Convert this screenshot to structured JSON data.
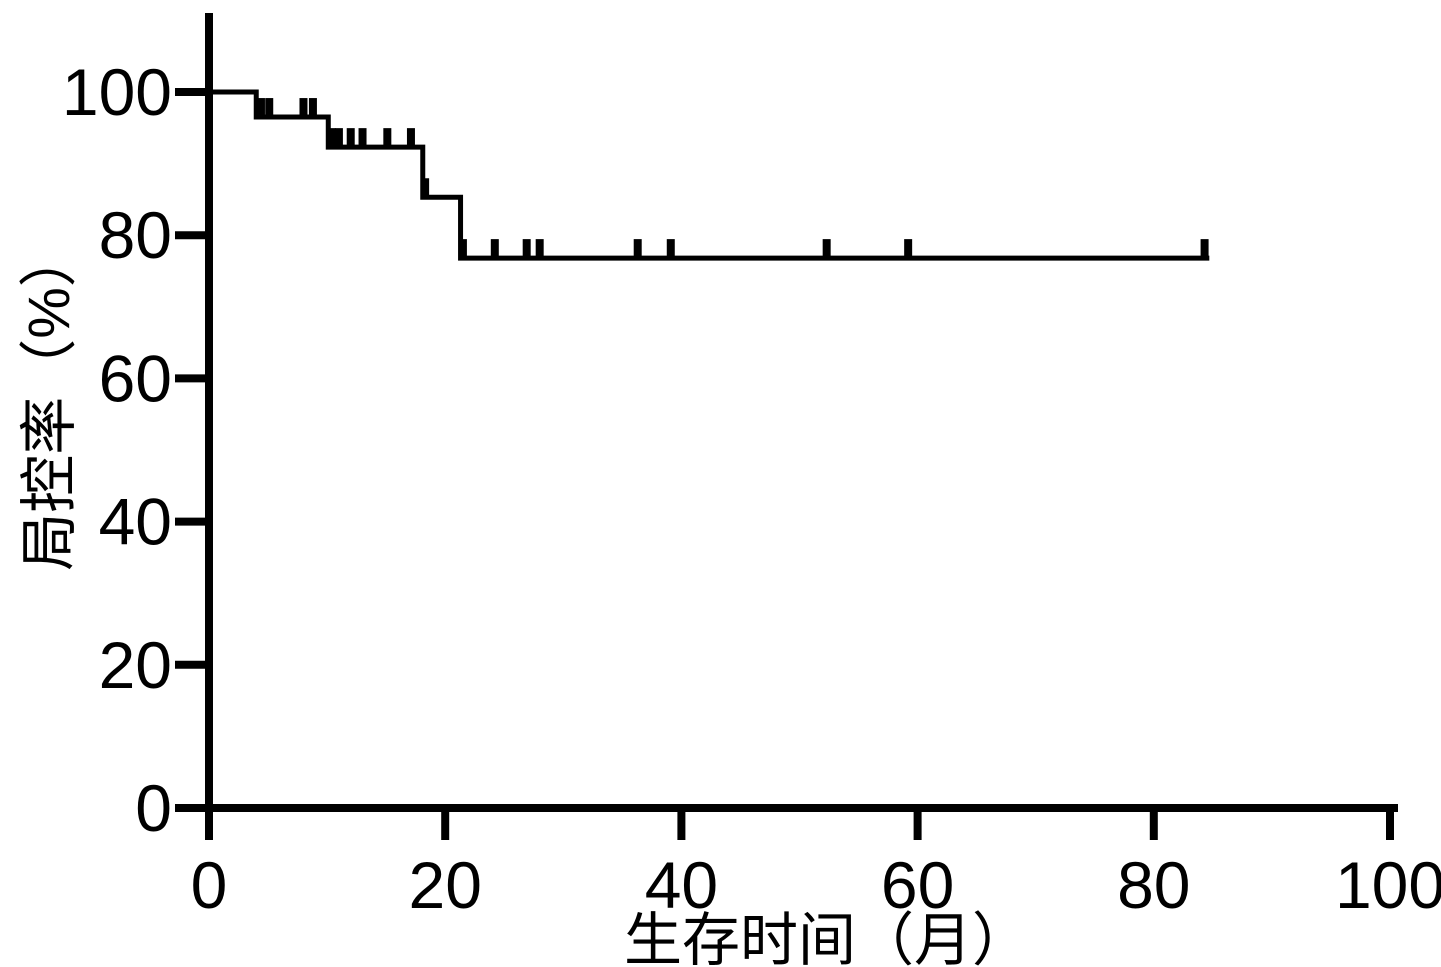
{
  "figure": {
    "background_color": "#ffffff",
    "axis_color": "#000000",
    "curve_color": "#000000"
  },
  "chart_data": {
    "type": "line",
    "subtype": "kaplan-meier-step-curve",
    "title": "",
    "xlabel": "生存时间（月）",
    "ylabel": "局控率（%）",
    "xlim": [
      0,
      100
    ],
    "ylim": [
      0,
      100
    ],
    "x_ticks": [
      0,
      20,
      40,
      60,
      80,
      100
    ],
    "y_ticks": [
      0,
      20,
      40,
      60,
      80,
      100
    ],
    "grid": false,
    "legend": null,
    "series": [
      {
        "name": "局控率",
        "color": "#000000",
        "steps": [
          {
            "t": 0,
            "value": 100
          },
          {
            "t": 4.0,
            "value": 96.5
          },
          {
            "t": 10.1,
            "value": 92.3
          },
          {
            "t": 18.1,
            "value": 85.3
          },
          {
            "t": 21.3,
            "value": 76.8
          }
        ],
        "end_time": 84.7,
        "censor_marks": [
          {
            "t": 4.4,
            "value": 96.5
          },
          {
            "t": 5.1,
            "value": 96.5
          },
          {
            "t": 8.0,
            "value": 96.5
          },
          {
            "t": 8.8,
            "value": 96.5
          },
          {
            "t": 10.4,
            "value": 92.3
          },
          {
            "t": 11.0,
            "value": 92.3
          },
          {
            "t": 12.0,
            "value": 92.3
          },
          {
            "t": 13.0,
            "value": 92.3
          },
          {
            "t": 15.1,
            "value": 92.3
          },
          {
            "t": 17.1,
            "value": 92.3
          },
          {
            "t": 18.3,
            "value": 85.3
          },
          {
            "t": 21.5,
            "value": 76.8
          },
          {
            "t": 24.2,
            "value": 76.8
          },
          {
            "t": 26.9,
            "value": 76.8
          },
          {
            "t": 28.0,
            "value": 76.8
          },
          {
            "t": 36.3,
            "value": 76.8
          },
          {
            "t": 39.1,
            "value": 76.8
          },
          {
            "t": 52.3,
            "value": 76.8
          },
          {
            "t": 59.2,
            "value": 76.8
          },
          {
            "t": 84.3,
            "value": 76.8
          }
        ]
      }
    ]
  }
}
